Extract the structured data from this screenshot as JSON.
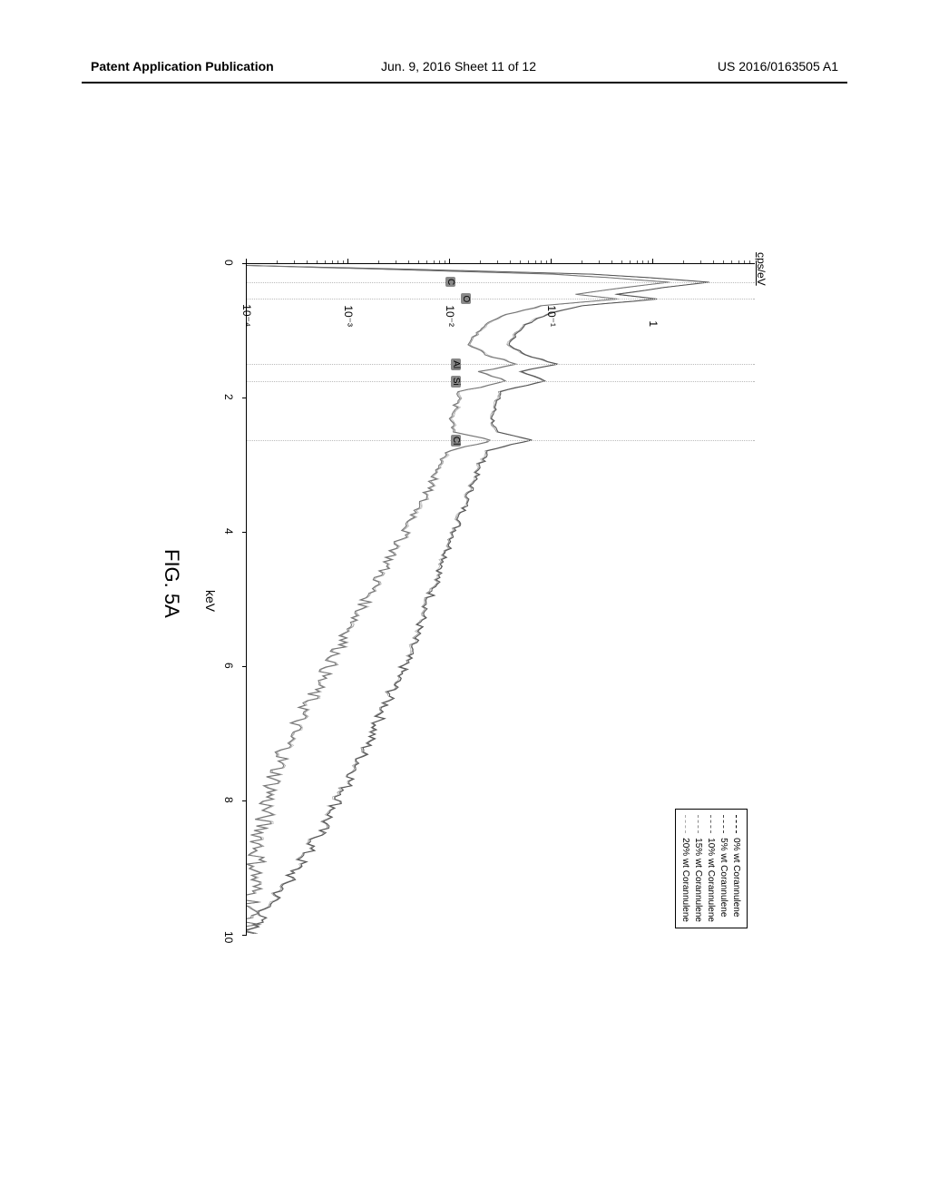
{
  "header": {
    "left": "Patent Application Publication",
    "center": "Jun. 9, 2016  Sheet 11 of 12",
    "right": "US 2016/0163505 A1"
  },
  "figure": {
    "caption": "FIG. 5A",
    "ylabel": "cps/eV",
    "xlabel": "keV",
    "chart": {
      "type": "line",
      "xlim": [
        0,
        10
      ],
      "xticks": [
        0,
        2,
        4,
        6,
        8,
        10
      ],
      "ylog": true,
      "ylim_exp": [
        -4,
        1
      ],
      "yticks_exp": [
        -4,
        -3,
        -2,
        -1,
        0
      ],
      "ytick_labels": [
        "10⁻⁴",
        "10⁻³",
        "10⁻²",
        "10⁻¹",
        "1"
      ],
      "background_color": "#ffffff",
      "axis_color": "#000000",
      "legend": {
        "position": "top-right",
        "items": [
          {
            "label": "0% wt Corannulene",
            "color": "#000000",
            "dash": "3,2"
          },
          {
            "label": "5% wt Corannulene",
            "color": "#444444",
            "dash": "1,2"
          },
          {
            "label": "10% wt Corannulene",
            "color": "#666666",
            "dash": "4,1,1,1"
          },
          {
            "label": "15% wt Corannulene",
            "color": "#888888",
            "dash": "2,1"
          },
          {
            "label": "20% wt Corannulene",
            "color": "#aaaaaa",
            "dash": "4,2"
          }
        ]
      },
      "peak_labels": [
        {
          "text": "C",
          "x_keV": 0.27,
          "y_exp": -2.0
        },
        {
          "text": "O",
          "x_keV": 0.52,
          "y_exp": -1.85
        },
        {
          "text": "Al",
          "x_keV": 1.49,
          "y_exp": -1.95
        },
        {
          "text": "Si",
          "x_keV": 1.74,
          "y_exp": -1.95
        },
        {
          "text": "Cl",
          "x_keV": 2.62,
          "y_exp": -1.95
        }
      ],
      "grid_vlines_keV": [
        0.27,
        0.52,
        1.49,
        1.74,
        2.62
      ],
      "series": [
        {
          "name": "upper",
          "color": "#555555",
          "width": 1,
          "points": [
            [
              0.02,
              -4.0
            ],
            [
              0.08,
              -2.3
            ],
            [
              0.15,
              -0.6
            ],
            [
              0.2,
              -0.05
            ],
            [
              0.27,
              0.55
            ],
            [
              0.35,
              0.1
            ],
            [
              0.45,
              -0.35
            ],
            [
              0.52,
              0.05
            ],
            [
              0.62,
              -0.7
            ],
            [
              0.75,
              -1.05
            ],
            [
              0.9,
              -1.25
            ],
            [
              1.05,
              -1.35
            ],
            [
              1.2,
              -1.42
            ],
            [
              1.35,
              -1.25
            ],
            [
              1.49,
              -0.95
            ],
            [
              1.6,
              -1.3
            ],
            [
              1.74,
              -1.05
            ],
            [
              1.9,
              -1.5
            ],
            [
              2.1,
              -1.55
            ],
            [
              2.3,
              -1.58
            ],
            [
              2.5,
              -1.55
            ],
            [
              2.62,
              -1.2
            ],
            [
              2.78,
              -1.62
            ],
            [
              3.0,
              -1.7
            ],
            [
              3.3,
              -1.78
            ],
            [
              3.6,
              -1.85
            ],
            [
              4.0,
              -1.95
            ],
            [
              4.4,
              -2.05
            ],
            [
              4.8,
              -2.15
            ],
            [
              5.2,
              -2.25
            ],
            [
              5.6,
              -2.35
            ],
            [
              6.0,
              -2.45
            ],
            [
              6.4,
              -2.58
            ],
            [
              6.8,
              -2.7
            ],
            [
              7.2,
              -2.82
            ],
            [
              7.6,
              -2.95
            ],
            [
              8.0,
              -3.1
            ],
            [
              8.4,
              -3.25
            ],
            [
              8.8,
              -3.42
            ],
            [
              9.2,
              -3.6
            ],
            [
              9.6,
              -3.8
            ],
            [
              10.0,
              -4.0
            ]
          ],
          "noise": 0.04
        },
        {
          "name": "lower",
          "color": "#777777",
          "width": 1,
          "points": [
            [
              0.02,
              -4.0
            ],
            [
              0.08,
              -2.6
            ],
            [
              0.15,
              -1.0
            ],
            [
              0.2,
              -0.45
            ],
            [
              0.27,
              0.15
            ],
            [
              0.35,
              -0.3
            ],
            [
              0.45,
              -0.75
            ],
            [
              0.52,
              -0.35
            ],
            [
              0.62,
              -1.1
            ],
            [
              0.75,
              -1.45
            ],
            [
              0.9,
              -1.65
            ],
            [
              1.05,
              -1.75
            ],
            [
              1.2,
              -1.82
            ],
            [
              1.35,
              -1.65
            ],
            [
              1.49,
              -1.35
            ],
            [
              1.6,
              -1.7
            ],
            [
              1.74,
              -1.45
            ],
            [
              1.9,
              -1.9
            ],
            [
              2.1,
              -1.95
            ],
            [
              2.3,
              -1.98
            ],
            [
              2.5,
              -1.95
            ],
            [
              2.62,
              -1.6
            ],
            [
              2.78,
              -2.02
            ],
            [
              3.0,
              -2.1
            ],
            [
              3.3,
              -2.2
            ],
            [
              3.6,
              -2.3
            ],
            [
              4.0,
              -2.45
            ],
            [
              4.4,
              -2.6
            ],
            [
              4.8,
              -2.75
            ],
            [
              5.2,
              -2.9
            ],
            [
              5.6,
              -3.05
            ],
            [
              6.0,
              -3.2
            ],
            [
              6.4,
              -3.35
            ],
            [
              6.8,
              -3.5
            ],
            [
              7.2,
              -3.62
            ],
            [
              7.6,
              -3.72
            ],
            [
              8.0,
              -3.8
            ],
            [
              8.4,
              -3.86
            ],
            [
              8.8,
              -3.9
            ],
            [
              9.2,
              -3.93
            ],
            [
              9.6,
              -3.96
            ],
            [
              10.0,
              -4.0
            ]
          ],
          "noise": 0.06
        }
      ]
    }
  }
}
